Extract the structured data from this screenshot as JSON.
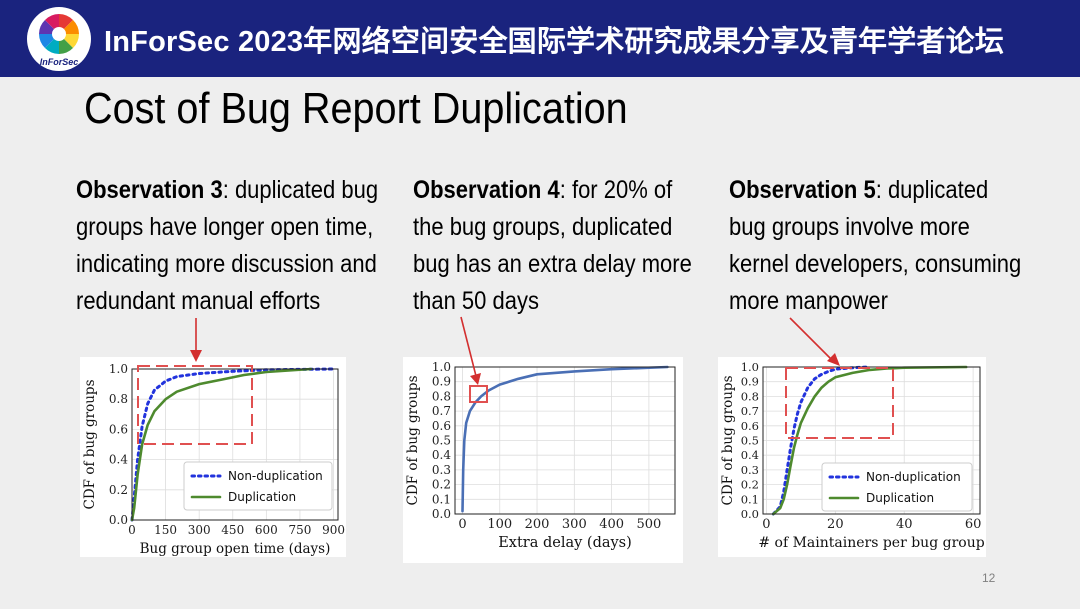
{
  "header": {
    "title": "InForSec 2023年网络空间安全国际学术研究成果分享及青年学者论坛",
    "logo_text": "InForSec"
  },
  "slide_title": "Cost of Bug Report Duplication",
  "observations": [
    {
      "heading": "Observation 3",
      "lines": [
        ": duplicated bug",
        "groups have longer open time,",
        "indicating more discussion and",
        "redundant manual efforts"
      ]
    },
    {
      "heading": "Observation 4",
      "lines": [
        ": for 20% of",
        "the bug groups, duplicated",
        "bug has an extra delay more",
        "than 50 days"
      ]
    },
    {
      "heading": "Observation 5",
      "lines": [
        ": duplicated",
        "bug groups involve more",
        "kernel developers, consuming",
        "more manpower"
      ]
    }
  ],
  "colors": {
    "header_bg": "#1a237e",
    "non_dup": "#2233dd",
    "dup": "#4e8a2e",
    "delay": "#4a6fb5",
    "highlight": "#e05050"
  },
  "chart_data": [
    {
      "type": "line",
      "xlabel": "Bug group open time (days)",
      "ylabel": "CDF of bug groups",
      "xlim": [
        0,
        920
      ],
      "ylim": [
        0,
        1.0
      ],
      "xticks": [
        0,
        150,
        300,
        450,
        600,
        750,
        900
      ],
      "xtick_labels": [
        "0",
        "150",
        "300",
        "450",
        "600",
        "750",
        "900"
      ],
      "yticks": [
        0.0,
        0.2,
        0.4,
        0.6,
        0.8,
        1.0
      ],
      "ytick_labels": [
        "0.0",
        "0.2",
        "0.4",
        "0.6",
        "0.8",
        "1.0"
      ],
      "grid": true,
      "legend": "lower-right",
      "series": [
        {
          "name": "Non-duplication",
          "style": "dotted",
          "x": [
            0,
            10,
            25,
            45,
            70,
            100,
            150,
            200,
            300,
            450,
            600,
            900
          ],
          "y": [
            0,
            0.15,
            0.4,
            0.62,
            0.77,
            0.86,
            0.92,
            0.95,
            0.97,
            0.985,
            0.995,
            1.0
          ]
        },
        {
          "name": "Duplication",
          "style": "solid",
          "x": [
            0,
            10,
            25,
            45,
            70,
            100,
            150,
            200,
            300,
            400,
            500,
            600,
            800
          ],
          "y": [
            0,
            0.08,
            0.3,
            0.5,
            0.63,
            0.72,
            0.8,
            0.85,
            0.9,
            0.93,
            0.96,
            0.98,
            1.0
          ]
        }
      ]
    },
    {
      "type": "line",
      "xlabel": "Extra delay (days)",
      "ylabel": "CDF of bug groups",
      "xlim": [
        -20,
        570
      ],
      "ylim": [
        0,
        1.0
      ],
      "xticks": [
        0,
        100,
        200,
        300,
        400,
        500
      ],
      "xtick_labels": [
        "0",
        "100",
        "200",
        "300",
        "400",
        "500"
      ],
      "yticks": [
        0.0,
        0.1,
        0.2,
        0.3,
        0.4,
        0.5,
        0.6,
        0.7,
        0.8,
        0.9,
        1.0
      ],
      "ytick_labels": [
        "0.0",
        "0.1",
        "0.2",
        "0.3",
        "0.4",
        "0.5",
        "0.6",
        "0.7",
        "0.8",
        "0.9",
        "1.0"
      ],
      "grid": true,
      "series": [
        {
          "name": "",
          "style": "solid",
          "x": [
            0,
            2,
            5,
            10,
            20,
            35,
            50,
            70,
            100,
            150,
            200,
            300,
            400,
            550
          ],
          "y": [
            0.02,
            0.3,
            0.5,
            0.62,
            0.7,
            0.76,
            0.8,
            0.84,
            0.88,
            0.92,
            0.95,
            0.97,
            0.985,
            1.0
          ]
        }
      ]
    },
    {
      "type": "line",
      "xlabel": "# of Maintainers per bug group",
      "ylabel": "CDF of bug groups",
      "xlim": [
        -1,
        62
      ],
      "ylim": [
        0,
        1.0
      ],
      "xticks": [
        0,
        20,
        40,
        60
      ],
      "xtick_labels": [
        "0",
        "20",
        "40",
        "60"
      ],
      "yticks": [
        0.0,
        0.1,
        0.2,
        0.3,
        0.4,
        0.5,
        0.6,
        0.7,
        0.8,
        0.9,
        1.0
      ],
      "ytick_labels": [
        "0.0",
        "0.1",
        "0.2",
        "0.3",
        "0.4",
        "0.5",
        "0.6",
        "0.7",
        "0.8",
        "0.9",
        "1.0"
      ],
      "grid": true,
      "legend": "lower-right",
      "series": [
        {
          "name": "Non-duplication",
          "style": "dotted",
          "x": [
            2,
            4,
            5,
            6,
            7,
            8,
            9,
            10,
            12,
            14,
            16,
            18,
            20,
            25,
            30
          ],
          "y": [
            0,
            0.05,
            0.15,
            0.3,
            0.45,
            0.58,
            0.68,
            0.76,
            0.86,
            0.92,
            0.95,
            0.97,
            0.985,
            0.995,
            1.0
          ]
        },
        {
          "name": "Duplication",
          "style": "solid",
          "x": [
            2,
            4,
            5,
            6,
            7,
            8,
            9,
            10,
            12,
            14,
            16,
            18,
            20,
            25,
            30,
            35,
            40,
            58
          ],
          "y": [
            0,
            0.04,
            0.1,
            0.2,
            0.33,
            0.45,
            0.54,
            0.62,
            0.72,
            0.8,
            0.86,
            0.9,
            0.93,
            0.96,
            0.98,
            0.99,
            0.995,
            1.0
          ]
        }
      ]
    }
  ],
  "page_number": "12"
}
